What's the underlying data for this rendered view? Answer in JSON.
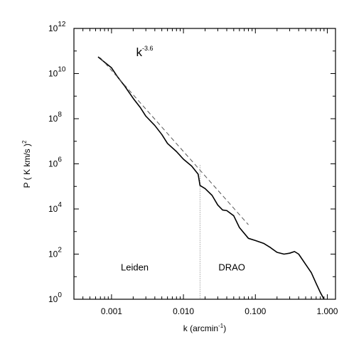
{
  "chart_data": {
    "type": "line",
    "xscale": "log",
    "yscale": "log",
    "xlim": [
      0.0003,
      1.3
    ],
    "ylim": [
      1,
      1000000000000
    ],
    "xlabel": "k (arcmin⁻¹)",
    "ylabel": "P ( K km/s )²",
    "xticks": [
      {
        "value": 0.001,
        "label": "0.001"
      },
      {
        "value": 0.01,
        "label": "0.010"
      },
      {
        "value": 0.1,
        "label": "0.100"
      },
      {
        "value": 1.0,
        "label": "1.000"
      }
    ],
    "yticks": [
      {
        "value": 1,
        "base": "10",
        "exp": "0"
      },
      {
        "value": 100,
        "base": "10",
        "exp": "2"
      },
      {
        "value": 10000,
        "base": "10",
        "exp": "4"
      },
      {
        "value": 1000000,
        "base": "10",
        "exp": "6"
      },
      {
        "value": 100000000,
        "base": "10",
        "exp": "8"
      },
      {
        "value": 10000000000,
        "base": "10",
        "exp": "10"
      },
      {
        "value": 1000000000000,
        "base": "10",
        "exp": "12"
      }
    ],
    "series": [
      {
        "style": "solid",
        "color": "#000000",
        "points": [
          [
            0.00065,
            55000000000.0
          ],
          [
            0.0008,
            32000000000.0
          ],
          [
            0.001,
            18000000000.0
          ],
          [
            0.0012,
            7500000000.0
          ],
          [
            0.0015,
            3000000000.0
          ],
          [
            0.002,
            800000000.0
          ],
          [
            0.0025,
            320000000.0
          ],
          [
            0.003,
            130000000.0
          ],
          [
            0.004,
            50000000.0
          ],
          [
            0.005,
            20000000.0
          ],
          [
            0.006,
            8000000.0
          ],
          [
            0.008,
            3500000.0
          ],
          [
            0.01,
            1600000.0
          ],
          [
            0.013,
            800000.0
          ],
          [
            0.016,
            350000.0
          ],
          [
            0.017,
            110000.0
          ],
          [
            0.02,
            80000.0
          ],
          [
            0.025,
            40000.0
          ],
          [
            0.03,
            15000.0
          ],
          [
            0.035,
            9000.0
          ],
          [
            0.04,
            8500.0
          ],
          [
            0.05,
            5000.0
          ],
          [
            0.06,
            1500.0
          ],
          [
            0.08,
            500.0
          ],
          [
            0.1,
            400.0
          ],
          [
            0.13,
            300.0
          ],
          [
            0.16,
            200.0
          ],
          [
            0.2,
            120.0
          ],
          [
            0.25,
            100.0
          ],
          [
            0.3,
            110.0
          ],
          [
            0.35,
            130.0
          ],
          [
            0.4,
            100.0
          ],
          [
            0.5,
            35.0
          ],
          [
            0.6,
            15.0
          ],
          [
            0.7,
            5.0
          ],
          [
            0.8,
            2.0
          ],
          [
            0.9,
            1.0
          ]
        ]
      },
      {
        "style": "dashed",
        "color": "#555555",
        "points": [
          [
            0.0007,
            50000000000.0
          ],
          [
            0.08,
            2000.0
          ]
        ]
      }
    ],
    "divider": {
      "x": 0.017,
      "style": "dotted"
    },
    "annotations": [
      {
        "text": "Leiden",
        "x": 0.0021,
        "y": 19
      },
      {
        "text": "DRAO",
        "x": 0.047,
        "y": 19
      }
    ],
    "fit_label": {
      "base": "k",
      "exp": "-3.6",
      "x": 0.0022,
      "y": 60000000000.0
    }
  }
}
